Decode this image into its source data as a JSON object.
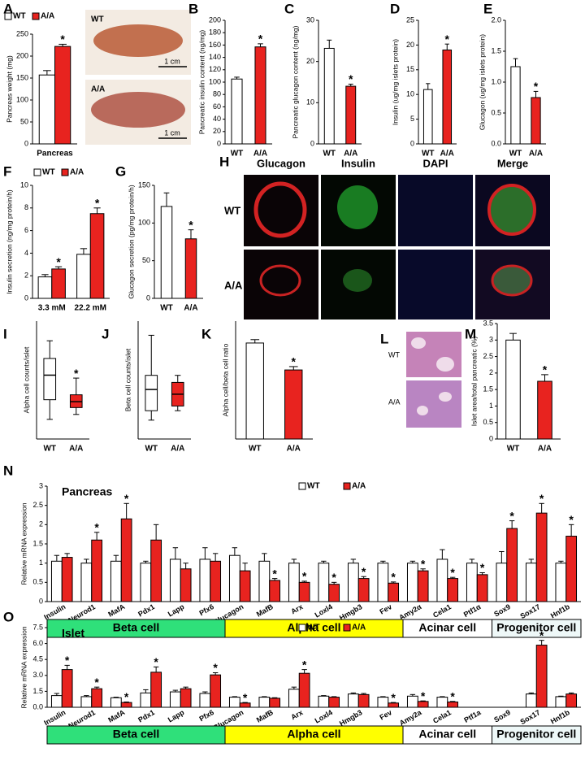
{
  "chart_data": [
    {
      "type": "bar",
      "panel": "A",
      "ylabel": "Pancreas weight (mg)",
      "categories": [
        "Pancreas"
      ],
      "series": [
        {
          "name": "WT",
          "color": "#ffffff",
          "values": [
            157
          ],
          "errors": [
            10
          ],
          "significance": [
            null
          ]
        },
        {
          "name": "A/A",
          "color": "#e8231f",
          "values": [
            222
          ],
          "errors": [
            5
          ],
          "significance": [
            "*"
          ]
        }
      ],
      "ylim": [
        0,
        250
      ],
      "yticks": [
        0,
        50,
        100,
        150,
        200,
        250
      ]
    },
    {
      "type": "bar",
      "panel": "B",
      "ylabel": "Pancreatic insulin content (ng/mg)",
      "categories": [
        "WT",
        "A/A"
      ],
      "values": [
        105,
        157
      ],
      "errors": [
        3,
        5
      ],
      "significance": [
        null,
        "*"
      ],
      "colors": [
        "#ffffff",
        "#e8231f"
      ],
      "ylim": [
        0,
        200
      ],
      "yticks": [
        0,
        20,
        40,
        60,
        80,
        100,
        120,
        140,
        160,
        180,
        200
      ]
    },
    {
      "type": "bar",
      "panel": "C",
      "ylabel": "Pancreatic glucagon content (ng/mg)",
      "categories": [
        "WT",
        "A/A"
      ],
      "values": [
        23.2,
        14
      ],
      "errors": [
        2,
        0.5
      ],
      "significance": [
        null,
        "*"
      ],
      "colors": [
        "#ffffff",
        "#e8231f"
      ],
      "ylim": [
        0,
        30
      ],
      "yticks": [
        0,
        10,
        20,
        30
      ]
    },
    {
      "type": "bar",
      "panel": "D",
      "ylabel": "Insulin (ug/mg islets protein)",
      "categories": [
        "WT",
        "A/A"
      ],
      "values": [
        11,
        19
      ],
      "errors": [
        1.2,
        1.2
      ],
      "significance": [
        null,
        "*"
      ],
      "colors": [
        "#ffffff",
        "#e8231f"
      ],
      "ylim": [
        0,
        25
      ],
      "yticks": [
        0,
        5,
        10,
        15,
        20,
        25
      ]
    },
    {
      "type": "bar",
      "panel": "E",
      "ylabel": "Glucagon (ug/mg islets protein)",
      "categories": [
        "WT",
        "A/A"
      ],
      "values": [
        1.25,
        0.75
      ],
      "errors": [
        0.13,
        0.1
      ],
      "significance": [
        null,
        "*"
      ],
      "colors": [
        "#ffffff",
        "#e8231f"
      ],
      "ylim": [
        0,
        2
      ],
      "yticks": [
        {
          "value": 0,
          "label": "0.0"
        },
        0.5,
        {
          "value": 1,
          "label": "1.0"
        },
        1.5,
        {
          "value": 2,
          "label": "2.0"
        }
      ]
    },
    {
      "type": "bar",
      "panel": "F",
      "ylabel": "Insulin secretion (ng/mg protein/h)",
      "categories": [
        "3.3 mM",
        "22.2 mM"
      ],
      "series": [
        {
          "name": "WT",
          "color": "#ffffff",
          "values": [
            1.9,
            3.9
          ],
          "errors": [
            0.2,
            0.5
          ],
          "significance": [
            null,
            null
          ]
        },
        {
          "name": "A/A",
          "color": "#e8231f",
          "values": [
            2.6,
            7.5
          ],
          "errors": [
            0.2,
            0.5
          ],
          "significance": [
            "*",
            "*"
          ]
        }
      ],
      "ylim": [
        0,
        10
      ],
      "yticks": [
        0,
        2,
        4,
        6,
        8,
        10
      ]
    },
    {
      "type": "bar",
      "panel": "G",
      "ylabel": "Glucagon secretion (pg/mg protein/h)",
      "categories": [
        "WT",
        "A/A"
      ],
      "values": [
        122,
        79
      ],
      "errors": [
        18,
        12
      ],
      "significance": [
        null,
        "*"
      ],
      "colors": [
        "#ffffff",
        "#e8231f"
      ],
      "ylim": [
        0,
        150
      ],
      "yticks": [
        0,
        50,
        100,
        150
      ]
    },
    {
      "type": "box",
      "panel": "I",
      "ylabel": "Alpha cell counts/islet",
      "categories": [
        "WT",
        "A/A"
      ],
      "boxes": [
        {
          "min": 20,
          "q1": 40,
          "median": 65,
          "q3": 82,
          "max": 100
        },
        {
          "min": 25,
          "q1": 32,
          "median": 38,
          "q3": 45,
          "max": 62
        }
      ],
      "significance": [
        null,
        "*"
      ],
      "colors": [
        "#ffffff",
        "#e8231f"
      ],
      "ylim": [
        0,
        120
      ]
    },
    {
      "type": "box",
      "panel": "J",
      "ylabel": "Beta cell counts/islet",
      "categories": [
        "WT",
        "A/A"
      ],
      "boxes": [
        {
          "min": 40,
          "q1": 60,
          "median": 105,
          "q3": 135,
          "max": 220
        },
        {
          "min": 60,
          "q1": 70,
          "median": 95,
          "q3": 120,
          "max": 135
        }
      ],
      "significance": [
        null,
        null
      ],
      "colors": [
        "#ffffff",
        "#e8231f"
      ],
      "ylim": [
        0,
        250
      ]
    },
    {
      "type": "bar",
      "panel": "K",
      "ylabel": "Alpha cell/beta cell ratio",
      "categories": [
        "WT",
        "A/A"
      ],
      "values": [
        0.57,
        0.41
      ],
      "errors": [
        0.02,
        0.02
      ],
      "significance": [
        null,
        "*"
      ],
      "colors": [
        "#ffffff",
        "#e8231f"
      ],
      "ylim": [
        0,
        0.7
      ]
    },
    {
      "type": "bar",
      "panel": "M",
      "ylabel": "Islet area/total pancreatic (%)",
      "categories": [
        "WT",
        "A/A"
      ],
      "values": [
        3.0,
        1.75
      ],
      "errors": [
        0.2,
        0.2
      ],
      "significance": [
        null,
        "*"
      ],
      "colors": [
        "#ffffff",
        "#e8231f"
      ],
      "ylim": [
        0,
        3.5
      ],
      "yticks": [
        0,
        0.5,
        1,
        1.5,
        2,
        2.5,
        3,
        3.5
      ]
    },
    {
      "type": "bar",
      "panel": "N",
      "title": "Pancreas",
      "ylabel": "Relative mRNA expression",
      "categories": [
        "Insulin",
        "Neurod1",
        "MafA",
        "Pdx1",
        "Lapp",
        "Pfx6",
        "Glucagon",
        "MafB",
        "Arx",
        "Loxl4",
        "Hmgb3",
        "Fev",
        "Amy2α",
        "Cela1",
        "Ptf1α",
        "Sox9",
        "Sox17",
        "Hnf1b"
      ],
      "category_groups": [
        "Beta cell",
        "Beta cell",
        "Beta cell",
        "Beta cell",
        "Beta cell",
        "Beta cell",
        "Alpha cell",
        "Alpha cell",
        "Alpha cell",
        "Alpha cell",
        "Alpha cell",
        "Alpha cell",
        "Acinar cell",
        "Acinar cell",
        "Acinar cell",
        "Progenitor cell",
        "Progenitor cell",
        "Progenitor cell"
      ],
      "group_colors": [
        "#2fe07a",
        "#ffff00",
        "#ffffff",
        "#eef8f8"
      ],
      "series": [
        {
          "name": "WT",
          "color": "#ffffff",
          "values": [
            1.05,
            1.0,
            1.05,
            1.0,
            1.1,
            1.1,
            1.2,
            1.05,
            1.0,
            1.0,
            1.0,
            1.0,
            1.0,
            1.1,
            1.0,
            1.0,
            1.0,
            1.0
          ],
          "errors": [
            0.15,
            0.1,
            0.15,
            0.05,
            0.3,
            0.3,
            0.2,
            0.2,
            0.1,
            0.05,
            0.1,
            0.05,
            0.05,
            0.25,
            0.1,
            0.3,
            0.1,
            0.05
          ],
          "significance": [
            null,
            null,
            null,
            null,
            null,
            null,
            null,
            null,
            null,
            null,
            null,
            null,
            null,
            null,
            null,
            null,
            null,
            null
          ]
        },
        {
          "name": "A/A",
          "color": "#e8231f",
          "values": [
            1.15,
            1.6,
            2.15,
            1.6,
            0.85,
            1.05,
            0.8,
            0.55,
            0.5,
            0.45,
            0.6,
            0.48,
            0.8,
            0.6,
            0.7,
            1.9,
            2.3,
            1.7
          ],
          "errors": [
            0.1,
            0.2,
            0.4,
            0.4,
            0.15,
            0.2,
            0.2,
            0.05,
            0.03,
            0.05,
            0.05,
            0.03,
            0.05,
            0.03,
            0.05,
            0.2,
            0.25,
            0.3
          ],
          "significance": [
            null,
            "*",
            "*",
            null,
            null,
            null,
            null,
            "*",
            "*",
            "*",
            "*",
            "*",
            "*",
            "*",
            "*",
            "*",
            "*",
            "*"
          ]
        }
      ],
      "ylim": [
        0,
        3
      ],
      "yticks": [
        0,
        0.5,
        1,
        1.5,
        2,
        2.5,
        3
      ]
    },
    {
      "type": "bar",
      "panel": "O",
      "title": "Islet",
      "ylabel": "Relative mRNA expression",
      "categories": [
        "Insulin",
        "Neurod1",
        "MafA",
        "Pdx1",
        "Lapp",
        "Pfx6",
        "Glucagon",
        "MafB",
        "Arx",
        "Loxl4",
        "Hmgb3",
        "Fev",
        "Amy2a",
        "Cela1",
        "Ptf1a",
        "Sox9",
        "Sox17",
        "Hnf1b"
      ],
      "category_groups": [
        "Beta cell",
        "Beta cell",
        "Beta cell",
        "Beta cell",
        "Beta cell",
        "Beta cell",
        "Alpha cell",
        "Alpha cell",
        "Alpha cell",
        "Alpha cell",
        "Alpha cell",
        "Alpha cell",
        "Acinar cell",
        "Acinar cell",
        "Acinar cell",
        "Progenitor cell",
        "Progenitor cell",
        "Progenitor cell"
      ],
      "group_colors": [
        "#2fe07a",
        "#ffff00",
        "#ffffff",
        "#eef8f8"
      ],
      "series": [
        {
          "name": "WT",
          "color": "#ffffff",
          "values": [
            1.1,
            1.0,
            0.9,
            1.35,
            1.45,
            1.3,
            0.95,
            0.95,
            1.7,
            1.05,
            1.25,
            0.95,
            1.05,
            0.95,
            null,
            null,
            1.25,
            1.0
          ],
          "errors": [
            0.2,
            0.1,
            0.05,
            0.3,
            0.15,
            0.15,
            0.05,
            0.05,
            0.2,
            0.05,
            0.1,
            0.05,
            0.15,
            0.05,
            null,
            null,
            0.1,
            0.05
          ],
          "significance": [
            null,
            null,
            null,
            null,
            null,
            null,
            null,
            null,
            null,
            null,
            null,
            null,
            null,
            null,
            null,
            null,
            null,
            null
          ]
        },
        {
          "name": "A/A",
          "color": "#e8231f",
          "values": [
            3.55,
            1.75,
            0.45,
            3.3,
            1.75,
            3.05,
            0.4,
            0.85,
            3.2,
            0.95,
            1.2,
            0.4,
            0.55,
            0.5,
            null,
            null,
            5.85,
            1.25
          ],
          "errors": [
            0.4,
            0.15,
            0.05,
            0.5,
            0.15,
            0.2,
            0.05,
            0.05,
            0.35,
            0.05,
            0.1,
            0.05,
            0.05,
            0.05,
            null,
            null,
            0.45,
            0.1
          ],
          "significance": [
            "*",
            "*",
            "*",
            "*",
            null,
            "*",
            "*",
            null,
            "*",
            null,
            null,
            "*",
            "*",
            "*",
            null,
            null,
            "*",
            null
          ]
        }
      ],
      "ylim": [
        0,
        7.5
      ],
      "yticks": [
        {
          "value": 0,
          "label": "0.0"
        },
        1.5,
        {
          "value": 3,
          "label": "3.0"
        },
        4.5,
        {
          "value": 6,
          "label": "6.0"
        },
        7.5
      ]
    }
  ],
  "images": [
    {
      "rows": [
        "WT",
        "A/A"
      ],
      "scale_bar": "1 cm"
    },
    {
      "panel": "H",
      "columns": [
        "Glucagon",
        "Insulin",
        "DAPI",
        "Merge"
      ],
      "rows": [
        "WT",
        "A/A"
      ]
    },
    {
      "panel": "L",
      "rows": [
        "WT",
        "A/A"
      ]
    }
  ]
}
